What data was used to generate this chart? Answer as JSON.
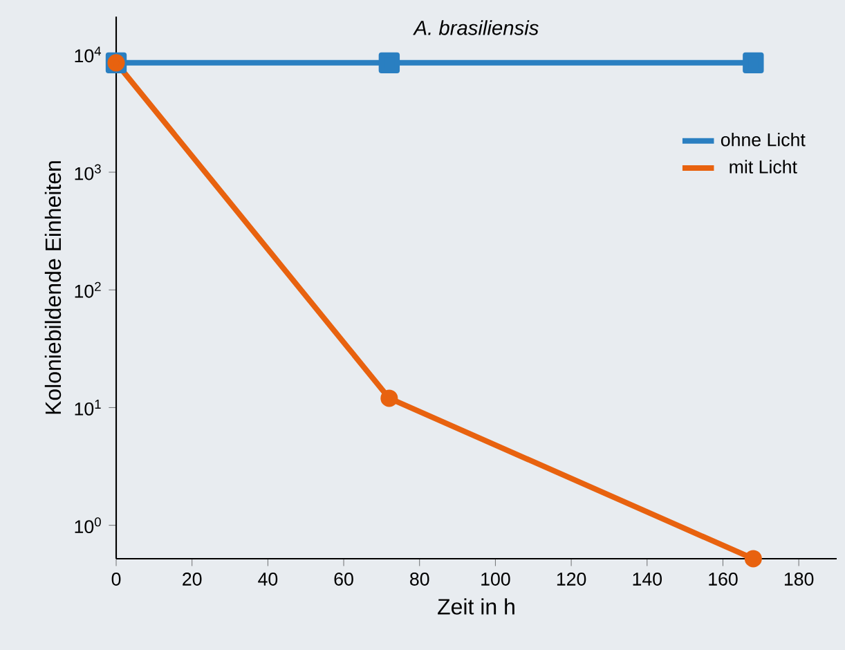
{
  "chart_data": {
    "type": "line",
    "title": "A. brasiliensis",
    "xlabel": "Zeit in h",
    "ylabel": "Koloniebildende Einheiten",
    "log": "y",
    "legend": "top right",
    "grid": false,
    "xlim": [
      0,
      190
    ],
    "xticks": [
      0,
      20,
      40,
      60,
      80,
      100,
      120,
      140,
      160,
      180
    ],
    "ylim": [
      0.52,
      21000
    ],
    "yticks": [
      {
        "value": 1,
        "label": "10$^{0}$"
      },
      {
        "value": 10,
        "label": "10$^{1}$"
      },
      {
        "value": 100,
        "label": "10$^{2}$"
      },
      {
        "value": 1000,
        "label": "10$^{3}$"
      },
      {
        "value": 10000,
        "label": "10$^{4}$"
      }
    ],
    "series": [
      {
        "name": "ohne Licht",
        "color": "#2a7fc1",
        "marker": "square",
        "x": [
          0,
          72,
          168
        ],
        "values": [
          8500,
          8500,
          8500
        ]
      },
      {
        "name": "mit Licht",
        "color": "#e8620f",
        "marker": "circle",
        "x": [
          0,
          72,
          168
        ],
        "values": [
          8500,
          12,
          0.52
        ]
      }
    ]
  }
}
